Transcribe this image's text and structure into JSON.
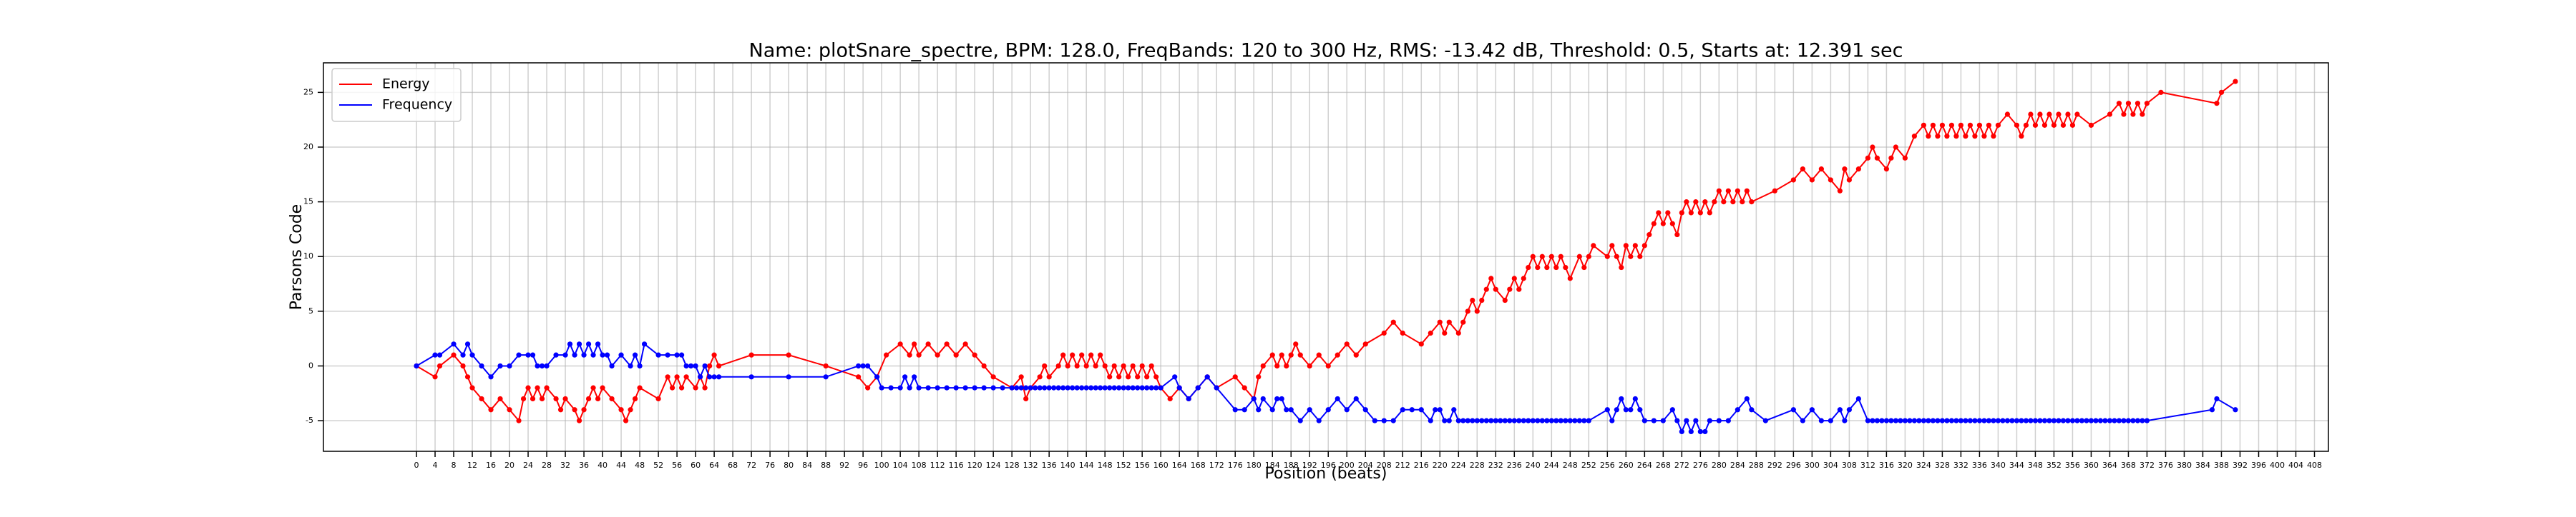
{
  "chart_data": {
    "type": "line",
    "title": "Name: plotSnare_spectre, BPM: 128.0, FreqBands: 120 to 300 Hz, RMS: -13.42 dB, Threshold: 0.5, Starts at: 12.391 sec",
    "x_label": "Position (beats)",
    "y_label": "Parsons Code",
    "xlim": [
      -20,
      411
    ],
    "ylim": [
      -7.8,
      27.7
    ],
    "xticks": [
      0,
      4,
      8,
      12,
      16,
      20,
      24,
      28,
      32,
      36,
      40,
      44,
      48,
      52,
      56,
      60,
      64,
      68,
      72,
      76,
      80,
      84,
      88,
      92,
      96,
      100,
      104,
      108,
      112,
      116,
      120,
      124,
      128,
      132,
      136,
      140,
      144,
      148,
      152,
      156,
      160,
      164,
      168,
      172,
      176,
      180,
      184,
      188,
      192,
      196,
      200,
      204,
      208,
      212,
      216,
      220,
      224,
      228,
      232,
      236,
      240,
      244,
      248,
      252,
      256,
      260,
      264,
      268,
      272,
      276,
      280,
      284,
      288,
      292,
      296,
      300,
      304,
      308,
      312,
      316,
      320,
      324,
      328,
      332,
      336,
      340,
      344,
      348,
      352,
      356,
      360,
      364,
      368,
      372,
      376,
      380,
      384,
      388,
      392,
      396,
      400,
      404,
      408
    ],
    "yticks": [
      -5,
      0,
      5,
      10,
      15,
      20,
      25
    ],
    "grid": true,
    "legend": "upper left",
    "series": [
      {
        "name": "Energy",
        "color": "#ff0000",
        "x": [
          0,
          4,
          5,
          8,
          10,
          11,
          12,
          14,
          16,
          18,
          20,
          22,
          23,
          24,
          25,
          26,
          27,
          28,
          30,
          31,
          32,
          34,
          35,
          36,
          37,
          38,
          39,
          40,
          42,
          44,
          45,
          46,
          47,
          48,
          52,
          54,
          55,
          56,
          57,
          58,
          60,
          61,
          62,
          63,
          64,
          65,
          72,
          80,
          88,
          95,
          97,
          99,
          101,
          104,
          106,
          107,
          108,
          110,
          112,
          114,
          116,
          118,
          120,
          122,
          124,
          128,
          130,
          131,
          132,
          134,
          135,
          136,
          138,
          139,
          140,
          141,
          142,
          143,
          144,
          145,
          146,
          147,
          148,
          149,
          150,
          151,
          152,
          153,
          154,
          155,
          156,
          157,
          158,
          159,
          160,
          162,
          164,
          166,
          168,
          170,
          172,
          176,
          178,
          180,
          181,
          182,
          184,
          185,
          186,
          187,
          188,
          189,
          190,
          192,
          194,
          196,
          198,
          200,
          202,
          204,
          208,
          210,
          212,
          216,
          218,
          220,
          221,
          222,
          224,
          225,
          226,
          227,
          228,
          229,
          230,
          231,
          232,
          234,
          235,
          236,
          237,
          238,
          239,
          240,
          241,
          242,
          243,
          244,
          245,
          246,
          247,
          248,
          250,
          251,
          252,
          253,
          256,
          257,
          258,
          259,
          260,
          261,
          262,
          263,
          264,
          265,
          266,
          267,
          268,
          269,
          270,
          271,
          272,
          273,
          274,
          275,
          276,
          277,
          278,
          279,
          280,
          281,
          282,
          283,
          284,
          285,
          286,
          287,
          292,
          296,
          298,
          300,
          302,
          304,
          306,
          307,
          308,
          310,
          312,
          313,
          314,
          316,
          317,
          318,
          320,
          322,
          324,
          325,
          326,
          327,
          328,
          329,
          330,
          331,
          332,
          333,
          334,
          335,
          336,
          337,
          338,
          339,
          340,
          342,
          344,
          345,
          346,
          347,
          348,
          349,
          350,
          351,
          352,
          353,
          354,
          355,
          356,
          357,
          360,
          364,
          366,
          367,
          368,
          369,
          370,
          371,
          372,
          375,
          387,
          388,
          391
        ],
        "values": [
          0,
          -1,
          0,
          1,
          0,
          -1,
          -2,
          -3,
          -4,
          -3,
          -4,
          -5,
          -3,
          -2,
          -3,
          -2,
          -3,
          -2,
          -3,
          -4,
          -3,
          -4,
          -5,
          -4,
          -3,
          -2,
          -3,
          -2,
          -3,
          -4,
          -5,
          -4,
          -3,
          -2,
          -3,
          -1,
          -2,
          -1,
          -2,
          -1,
          -2,
          -1,
          -2,
          0,
          1,
          0,
          1,
          1,
          0,
          -1,
          -2,
          -1,
          1,
          2,
          1,
          2,
          1,
          2,
          1,
          2,
          1,
          2,
          1,
          0,
          -1,
          -2,
          -1,
          -3,
          -2,
          -1,
          0,
          -1,
          0,
          1,
          0,
          1,
          0,
          1,
          0,
          1,
          0,
          1,
          0,
          -1,
          0,
          -1,
          0,
          -1,
          0,
          -1,
          0,
          -1,
          0,
          -1,
          -2,
          -3,
          -2,
          -3,
          -2,
          -1,
          -2,
          -1,
          -2,
          -3,
          -1,
          0,
          1,
          0,
          1,
          0,
          1,
          2,
          1,
          0,
          1,
          0,
          1,
          2,
          1,
          2,
          3,
          4,
          3,
          2,
          3,
          4,
          3,
          4,
          3,
          4,
          5,
          6,
          5,
          6,
          7,
          8,
          7,
          6,
          7,
          8,
          7,
          8,
          9,
          10,
          9,
          10,
          9,
          10,
          9,
          10,
          9,
          8,
          10,
          9,
          10,
          11,
          10,
          11,
          10,
          9,
          11,
          10,
          11,
          10,
          11,
          12,
          13,
          14,
          13,
          14,
          13,
          12,
          14,
          15,
          14,
          15,
          14,
          15,
          14,
          15,
          16,
          15,
          16,
          15,
          16,
          15,
          16,
          15,
          16,
          17,
          18,
          17,
          18,
          17,
          16,
          18,
          17,
          18,
          19,
          20,
          19,
          18,
          19,
          20,
          19,
          21,
          22,
          21,
          22,
          21,
          22,
          21,
          22,
          21,
          22,
          21,
          22,
          21,
          22,
          21,
          22,
          21,
          22,
          23,
          22,
          21,
          22,
          23,
          22,
          23,
          22,
          23,
          22,
          23,
          22,
          23,
          22,
          23,
          22,
          23,
          24,
          23,
          24,
          23,
          24,
          23,
          24,
          25,
          24,
          25,
          26
        ]
      },
      {
        "name": "Frequency",
        "color": "#0000ff",
        "x": [
          0,
          4,
          5,
          8,
          10,
          11,
          12,
          14,
          16,
          18,
          20,
          22,
          24,
          25,
          26,
          27,
          28,
          30,
          32,
          33,
          34,
          35,
          36,
          37,
          38,
          39,
          40,
          41,
          42,
          44,
          46,
          47,
          48,
          49,
          52,
          54,
          56,
          57,
          58,
          59,
          60,
          61,
          62,
          63,
          64,
          65,
          72,
          80,
          88,
          95,
          96,
          97,
          99,
          100,
          102,
          104,
          105,
          106,
          107,
          108,
          110,
          112,
          114,
          116,
          118,
          120,
          122,
          124,
          126,
          128,
          129,
          130,
          131,
          132,
          133,
          134,
          135,
          136,
          137,
          138,
          139,
          140,
          141,
          142,
          143,
          144,
          145,
          146,
          147,
          148,
          149,
          150,
          151,
          152,
          153,
          154,
          155,
          156,
          157,
          158,
          159,
          160,
          163,
          164,
          166,
          168,
          170,
          172,
          176,
          178,
          180,
          181,
          182,
          184,
          185,
          186,
          187,
          188,
          190,
          192,
          194,
          196,
          198,
          200,
          202,
          204,
          206,
          208,
          210,
          212,
          214,
          216,
          218,
          219,
          220,
          221,
          222,
          223,
          224,
          225,
          226,
          227,
          228,
          229,
          230,
          231,
          232,
          233,
          234,
          235,
          236,
          237,
          238,
          239,
          240,
          241,
          242,
          243,
          244,
          245,
          246,
          247,
          248,
          249,
          250,
          251,
          252,
          256,
          257,
          258,
          259,
          260,
          261,
          262,
          263,
          264,
          266,
          268,
          270,
          271,
          272,
          273,
          274,
          275,
          276,
          277,
          278,
          280,
          282,
          284,
          286,
          287,
          290,
          296,
          298,
          300,
          302,
          304,
          306,
          307,
          308,
          310,
          312,
          313,
          314,
          315,
          316,
          317,
          318,
          319,
          320,
          321,
          322,
          323,
          324,
          325,
          326,
          327,
          328,
          329,
          330,
          331,
          332,
          333,
          334,
          335,
          336,
          337,
          338,
          339,
          340,
          341,
          342,
          343,
          344,
          345,
          346,
          347,
          348,
          349,
          350,
          351,
          352,
          353,
          354,
          355,
          356,
          357,
          358,
          359,
          360,
          361,
          362,
          363,
          364,
          365,
          366,
          367,
          368,
          369,
          370,
          371,
          372,
          386,
          387,
          391
        ],
        "values": [
          0,
          1,
          1,
          2,
          1,
          2,
          1,
          0,
          -1,
          0,
          0,
          1,
          1,
          1,
          0,
          0,
          0,
          1,
          1,
          2,
          1,
          2,
          1,
          2,
          1,
          2,
          1,
          1,
          0,
          1,
          0,
          1,
          0,
          2,
          1,
          1,
          1,
          1,
          0,
          0,
          0,
          -1,
          0,
          -1,
          -1,
          -1,
          -1,
          -1,
          -1,
          0,
          0,
          0,
          -1,
          -2,
          -2,
          -2,
          -1,
          -2,
          -1,
          -2,
          -2,
          -2,
          -2,
          -2,
          -2,
          -2,
          -2,
          -2,
          -2,
          -2,
          -2,
          -2,
          -2,
          -2,
          -2,
          -2,
          -2,
          -2,
          -2,
          -2,
          -2,
          -2,
          -2,
          -2,
          -2,
          -2,
          -2,
          -2,
          -2,
          -2,
          -2,
          -2,
          -2,
          -2,
          -2,
          -2,
          -2,
          -2,
          -2,
          -2,
          -2,
          -2,
          -1,
          -2,
          -3,
          -2,
          -1,
          -2,
          -4,
          -4,
          -3,
          -4,
          -3,
          -4,
          -3,
          -3,
          -4,
          -4,
          -5,
          -4,
          -5,
          -4,
          -3,
          -4,
          -3,
          -4,
          -5,
          -5,
          -5,
          -4,
          -4,
          -4,
          -5,
          -4,
          -4,
          -5,
          -5,
          -4,
          -5,
          -5,
          -5,
          -5,
          -5,
          -5,
          -5,
          -5,
          -5,
          -5,
          -5,
          -5,
          -5,
          -5,
          -5,
          -5,
          -5,
          -5,
          -5,
          -5,
          -5,
          -5,
          -5,
          -5,
          -5,
          -5,
          -5,
          -5,
          -5,
          -4,
          -5,
          -4,
          -3,
          -4,
          -4,
          -3,
          -4,
          -5,
          -5,
          -5,
          -4,
          -5,
          -6,
          -5,
          -6,
          -5,
          -6,
          -6,
          -5,
          -5,
          -5,
          -4,
          -3,
          -4,
          -5,
          -4,
          -5,
          -4,
          -5,
          -5,
          -4,
          -5,
          -4,
          -3,
          -5,
          -5,
          -5,
          -5,
          -5,
          -5,
          -5,
          -5,
          -5,
          -5,
          -5,
          -5,
          -5,
          -5,
          -5,
          -5,
          -5,
          -5,
          -5,
          -5,
          -5,
          -5,
          -5,
          -5,
          -5,
          -5,
          -5,
          -5,
          -5,
          -5,
          -5,
          -5,
          -5,
          -5,
          -5,
          -5,
          -5,
          -5,
          -5,
          -5,
          -5,
          -5,
          -5,
          -5,
          -5,
          -5,
          -5,
          -5,
          -5,
          -5,
          -5,
          -5,
          -5,
          -5,
          -5,
          -5,
          -5,
          -5,
          -5,
          -5,
          -5,
          -4,
          -3,
          -4
        ]
      }
    ]
  }
}
